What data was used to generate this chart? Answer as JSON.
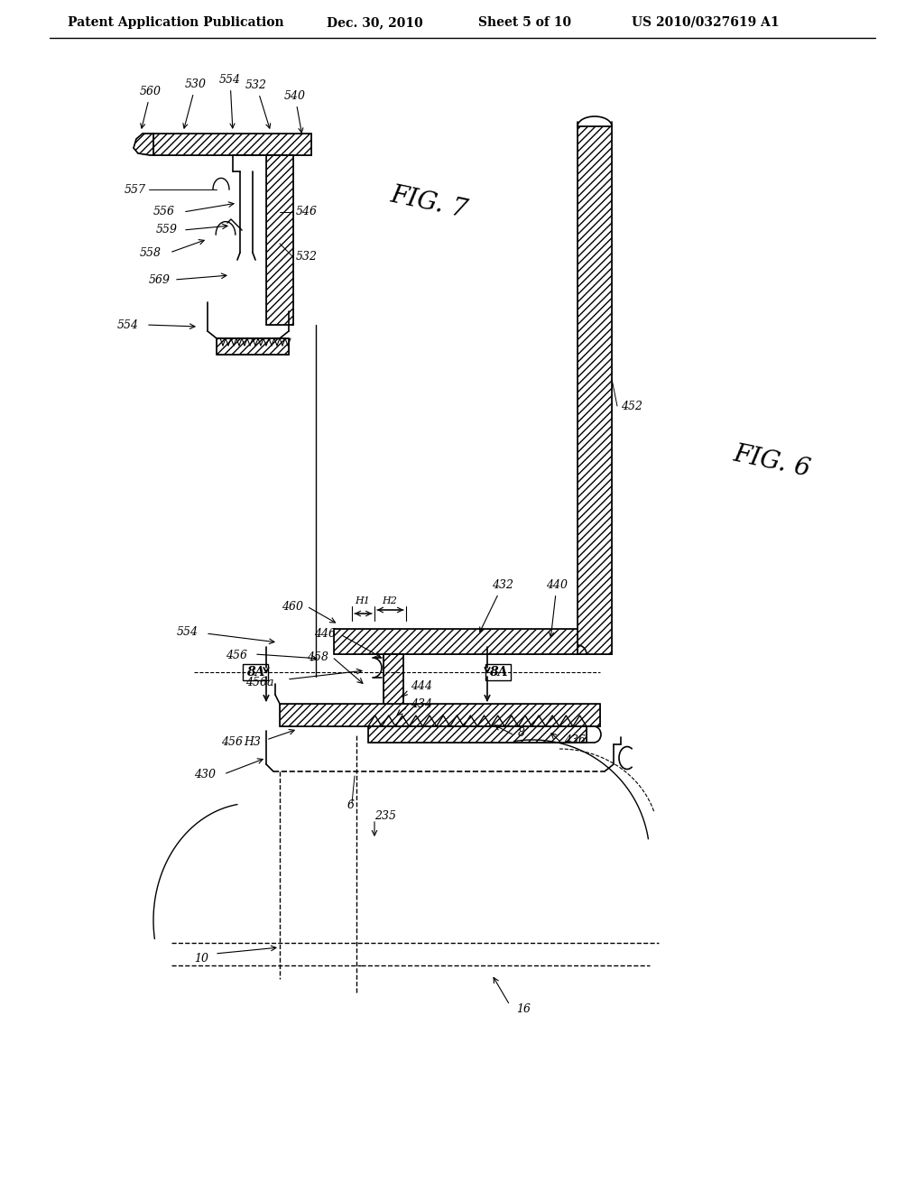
{
  "bg_color": "#ffffff",
  "lc": "#000000",
  "header_text": "Patent Application Publication",
  "header_date": "Dec. 30, 2010",
  "header_sheet": "Sheet 5 of 10",
  "header_patent": "US 2010/0327619 A1",
  "fig6_label": "FIG. 6",
  "fig7_label": "FIG. 7"
}
